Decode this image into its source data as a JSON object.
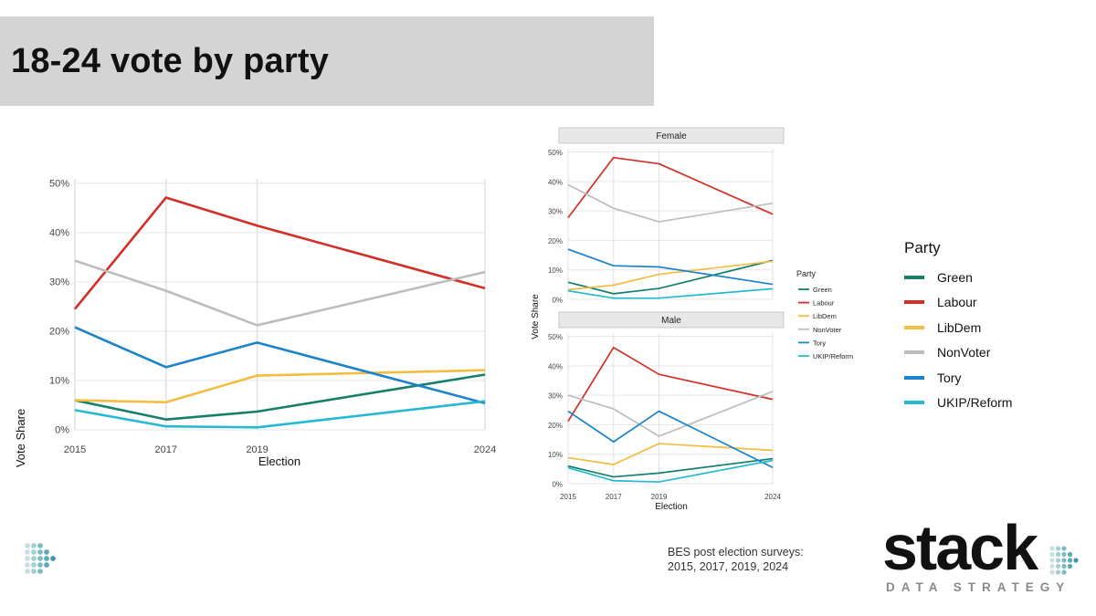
{
  "slide": {
    "title": "18-24 vote by party",
    "source_line1": "BES post election surveys:",
    "source_line2": "2015, 2017, 2019, 2024",
    "logo_word": "stack",
    "logo_sub": "DATA STRATEGY"
  },
  "colors": {
    "Green": "#157f6b",
    "Labour": "#d22f27",
    "LibDem": "#f2bd42",
    "NonVoter": "#bdbdbd",
    "Tory": "#1b82cc",
    "UKIP/Reform": "#25b9d3"
  },
  "legend": {
    "title": "Party",
    "items": [
      "Green",
      "Labour",
      "LibDem",
      "NonVoter",
      "Tory",
      "UKIP/Reform"
    ]
  },
  "chart_data": [
    {
      "type": "line",
      "id": "overall",
      "x": [
        2015,
        2017,
        2019,
        2024
      ],
      "x_tick_labels": [
        "2015",
        "2017",
        "2019",
        "2024"
      ],
      "y_tick_labels": [
        "0%",
        "10%",
        "20%",
        "30%",
        "40%",
        "50%"
      ],
      "xlabel": "Election",
      "ylabel": "Vote Share",
      "ylim": [
        0,
        52
      ],
      "series": [
        {
          "name": "Green",
          "values": [
            6.0,
            2.1,
            3.7,
            11.2
          ]
        },
        {
          "name": "Labour",
          "values": [
            24.5,
            47.1,
            41.4,
            28.7
          ]
        },
        {
          "name": "LibDem",
          "values": [
            6.0,
            5.6,
            11.0,
            12.1
          ]
        },
        {
          "name": "NonVoter",
          "values": [
            34.3,
            28.2,
            21.2,
            32.0
          ]
        },
        {
          "name": "Tory",
          "values": [
            20.8,
            12.7,
            17.7,
            5.4
          ]
        },
        {
          "name": "UKIP/Reform",
          "values": [
            4.0,
            0.7,
            0.5,
            5.8
          ]
        }
      ]
    },
    {
      "type": "line",
      "id": "by-sex",
      "xlabel": "Election",
      "ylabel": "Vote Share",
      "x_tick_labels": [
        "2015",
        "2017",
        "2019",
        "2024"
      ],
      "y_tick_labels": [
        "0%",
        "10%",
        "20%",
        "30%",
        "40%",
        "50%"
      ],
      "legend_title": "Party",
      "legend_items": [
        "Green",
        "Labour",
        "LibDem",
        "NonVoter",
        "Tory",
        "UKIP/Reform"
      ],
      "panels": [
        {
          "name": "Female",
          "x": [
            2015,
            2017,
            2019,
            2024
          ],
          "ylim": [
            0,
            51
          ],
          "series": [
            {
              "name": "Green",
              "values": [
                5.8,
                1.9,
                3.7,
                13.2
              ]
            },
            {
              "name": "Labour",
              "values": [
                27.7,
                48.1,
                46.0,
                28.9
              ]
            },
            {
              "name": "LibDem",
              "values": [
                3.3,
                4.8,
                8.5,
                12.9
              ]
            },
            {
              "name": "NonVoter",
              "values": [
                38.9,
                30.9,
                26.3,
                32.6
              ]
            },
            {
              "name": "Tory",
              "values": [
                17.0,
                11.4,
                11.0,
                5.1
              ]
            },
            {
              "name": "UKIP/Reform",
              "values": [
                2.9,
                0.4,
                0.4,
                3.6
              ]
            }
          ]
        },
        {
          "name": "Male",
          "x": [
            2015,
            2017,
            2019,
            2024
          ],
          "ylim": [
            0,
            51
          ],
          "series": [
            {
              "name": "Green",
              "values": [
                6.0,
                2.3,
                3.6,
                8.5
              ]
            },
            {
              "name": "Labour",
              "values": [
                21.2,
                46.2,
                37.1,
                28.6
              ]
            },
            {
              "name": "LibDem",
              "values": [
                8.8,
                6.5,
                13.6,
                11.3
              ]
            },
            {
              "name": "NonVoter",
              "values": [
                30.0,
                25.4,
                16.1,
                31.3
              ]
            },
            {
              "name": "Tory",
              "values": [
                24.6,
                14.2,
                24.6,
                5.5
              ]
            },
            {
              "name": "UKIP/Reform",
              "values": [
                5.4,
                1.0,
                0.6,
                7.9
              ]
            }
          ]
        }
      ]
    }
  ]
}
